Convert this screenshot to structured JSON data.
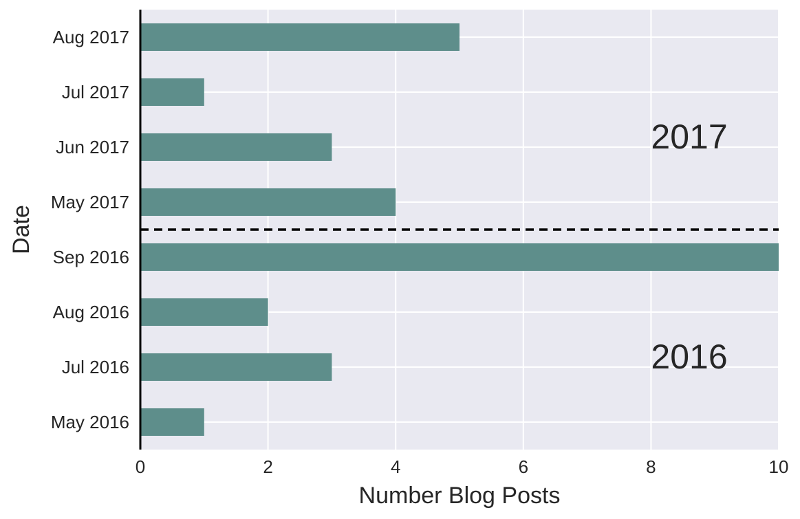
{
  "chart_data": {
    "type": "bar",
    "orientation": "horizontal",
    "categories": [
      "May 2016",
      "Jul 2016",
      "Aug 2016",
      "Sep 2016",
      "May 2017",
      "Jun 2017",
      "Jul 2017",
      "Aug 2017"
    ],
    "values": [
      1,
      3,
      2,
      10,
      4,
      3,
      1,
      5
    ],
    "xlabel": "Number Blog Posts",
    "ylabel": "Date",
    "xlim": [
      0,
      10
    ],
    "xticks": [
      "0",
      "2",
      "4",
      "6",
      "8",
      "10"
    ],
    "grid": true,
    "bar_color": "#5e8e8b",
    "background_color": "#e9e9f1",
    "divider": {
      "between": [
        "Sep 2016",
        "May 2017"
      ],
      "style": "dashed",
      "color": "#000000"
    },
    "annotations": [
      {
        "text": "2017",
        "x": 8,
        "row": 5.7
      },
      {
        "text": "2016",
        "x": 8,
        "row": 1.7
      }
    ]
  }
}
